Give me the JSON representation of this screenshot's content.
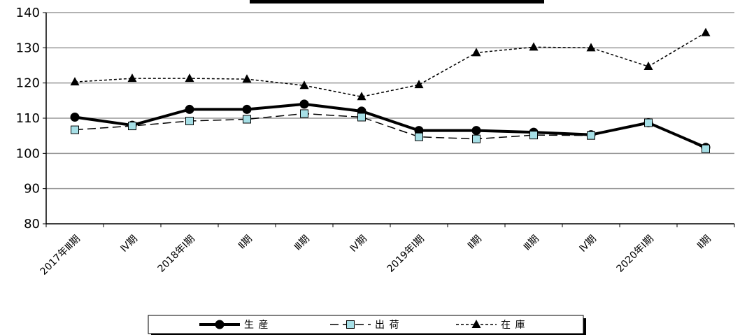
{
  "chart_data": {
    "type": "line",
    "title": "",
    "xlabel": "",
    "ylabel": "",
    "ylim": [
      80,
      140
    ],
    "yticks": [
      80,
      90,
      100,
      110,
      120,
      130,
      140
    ],
    "grid": true,
    "legend_position": "bottom",
    "categories": [
      "2017年Ⅲ期",
      "Ⅳ期",
      "2018年Ⅰ期",
      "Ⅱ期",
      "Ⅲ期",
      "Ⅳ期",
      "2019年Ⅰ期",
      "Ⅱ期",
      "Ⅲ期",
      "Ⅳ期",
      "2020年Ⅰ期",
      "Ⅱ期"
    ],
    "series": [
      {
        "name": "生 産",
        "marker": "circle",
        "line": "solid-thick",
        "values": [
          110.3,
          108.0,
          112.5,
          112.5,
          114.0,
          112.0,
          106.5,
          106.5,
          106.0,
          105.3,
          108.7,
          101.7
        ]
      },
      {
        "name": "出 荷",
        "marker": "square",
        "line": "dashed",
        "values": [
          106.7,
          107.8,
          109.2,
          109.7,
          111.3,
          110.3,
          104.7,
          104.1,
          105.2,
          105.1,
          108.7,
          101.3
        ]
      },
      {
        "name": "在 庫",
        "marker": "triangle",
        "line": "dotted",
        "values": [
          120.3,
          121.3,
          121.3,
          121.1,
          119.3,
          116.1,
          119.5,
          128.6,
          130.2,
          130.0,
          124.7,
          134.3
        ]
      }
    ]
  }
}
